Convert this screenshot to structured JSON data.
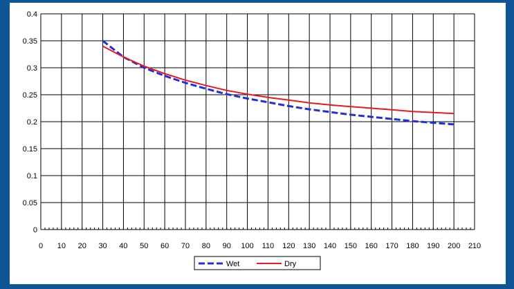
{
  "chart_data": {
    "type": "line",
    "title": "",
    "xlabel": "",
    "ylabel": "",
    "xlim": [
      0,
      210
    ],
    "ylim": [
      0,
      0.4
    ],
    "x_ticks": [
      "0",
      "10",
      "20",
      "30",
      "40",
      "50",
      "60",
      "70",
      "80",
      "90",
      "100",
      "110",
      "120",
      "130",
      "140",
      "150",
      "160",
      "170",
      "180",
      "190",
      "200",
      "210"
    ],
    "y_ticks": [
      "0",
      "0.05",
      "0.1",
      "0.15",
      "0.2",
      "0.25",
      "0.3",
      "0.35",
      "0.4"
    ],
    "grid": true,
    "legend_position": "bottom",
    "series": [
      {
        "name": "Wet",
        "color": "#1f2fdc",
        "style": "dashed",
        "x": [
          30,
          35,
          40,
          50,
          60,
          70,
          80,
          90,
          100,
          110,
          120,
          130,
          140,
          150,
          160,
          170,
          180,
          190,
          200
        ],
        "y": [
          0.35,
          0.335,
          0.32,
          0.3,
          0.285,
          0.272,
          0.261,
          0.251,
          0.243,
          0.236,
          0.229,
          0.223,
          0.218,
          0.213,
          0.209,
          0.205,
          0.201,
          0.198,
          0.195
        ]
      },
      {
        "name": "Dry",
        "color": "#e8191e",
        "style": "solid",
        "x": [
          30,
          35,
          40,
          50,
          60,
          70,
          80,
          90,
          100,
          110,
          120,
          130,
          140,
          150,
          160,
          170,
          180,
          190,
          200
        ],
        "y": [
          0.34,
          0.33,
          0.32,
          0.303,
          0.289,
          0.277,
          0.267,
          0.258,
          0.251,
          0.245,
          0.24,
          0.235,
          0.231,
          0.228,
          0.225,
          0.222,
          0.219,
          0.217,
          0.215
        ]
      }
    ]
  }
}
